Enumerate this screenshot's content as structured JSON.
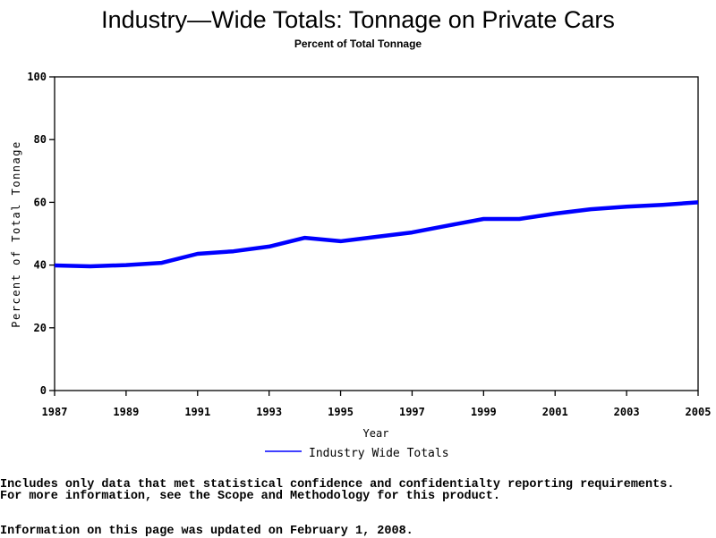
{
  "chart_data": {
    "type": "line",
    "title": "Industry—Wide Totals: Tonnage on Private Cars",
    "subtitle": "Percent of Total Tonnage",
    "xlabel": "Year",
    "ylabel": "Percent of Total Tonnage",
    "xlim": [
      1987,
      2005
    ],
    "ylim": [
      0,
      100
    ],
    "x_ticks": [
      "1987",
      "1989",
      "1991",
      "1993",
      "1995",
      "1997",
      "1999",
      "2001",
      "2003",
      "2005"
    ],
    "y_ticks": [
      "0",
      "20",
      "40",
      "60",
      "80",
      "100"
    ],
    "grid": false,
    "legend_position": "bottom-center",
    "x": [
      1987,
      1988,
      1989,
      1990,
      1991,
      1992,
      1993,
      1994,
      1995,
      1996,
      1997,
      1998,
      1999,
      2000,
      2001,
      2002,
      2003,
      2004,
      2005
    ],
    "series": [
      {
        "name": "Industry Wide Totals",
        "color": "#0000ff",
        "values": [
          39.9,
          39.6,
          40.0,
          40.7,
          43.6,
          44.4,
          45.9,
          48.7,
          47.6,
          49.0,
          50.4,
          52.6,
          54.7,
          54.7,
          56.4,
          57.8,
          58.6,
          59.2,
          60.0
        ]
      }
    ]
  },
  "footer": {
    "note_line1": "Includes only data that met statistical confidence and confidentialty reporting requirements.",
    "note_line2": "For more information, see the Scope and Methodology for this product.",
    "updated": "Information on this page was updated on February 1, 2008."
  }
}
